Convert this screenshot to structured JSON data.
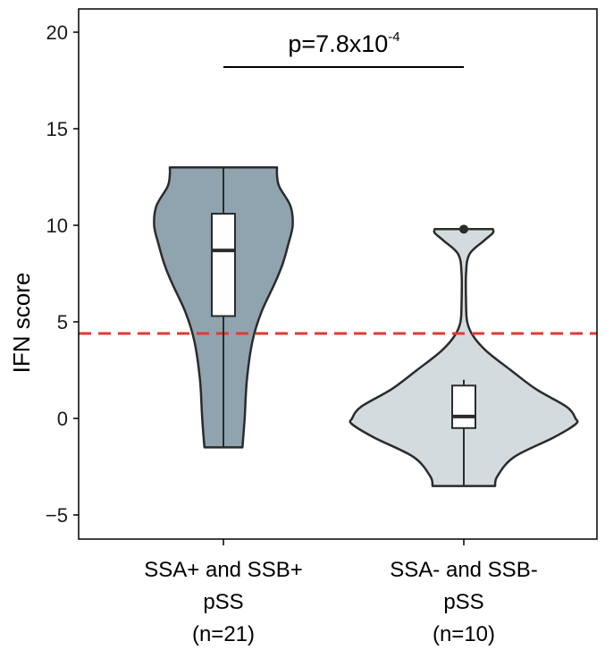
{
  "chart_data": {
    "type": "violin",
    "ylabel": "IFN score",
    "ylim": [
      -6.2,
      21.2
    ],
    "yticks": [
      "-5",
      "0",
      "5",
      "10",
      "15",
      "20"
    ],
    "ytick_values": [
      -5,
      0,
      5,
      10,
      15,
      20
    ],
    "threshold": {
      "value": 4.4,
      "color": "#e03a33",
      "style": "dashed"
    },
    "groups": [
      {
        "label_lines": [
          "SSA+ and SSB+",
          "pSS",
          "(n=21)"
        ],
        "fill": "#8fa4ae",
        "range": [
          -1.5,
          13.0
        ],
        "box": {
          "q1": 5.3,
          "median": 8.7,
          "q3": 10.6,
          "whisker_low": -1.5,
          "whisker_high": 13.0
        },
        "outliers": [],
        "density": [
          [
            -1.5,
            0.17
          ],
          [
            0.0,
            0.19
          ],
          [
            2.0,
            0.21
          ],
          [
            4.0,
            0.26
          ],
          [
            5.5,
            0.34
          ],
          [
            7.0,
            0.46
          ],
          [
            8.0,
            0.53
          ],
          [
            9.0,
            0.58
          ],
          [
            10.0,
            0.62
          ],
          [
            11.0,
            0.6
          ],
          [
            12.0,
            0.5
          ],
          [
            12.6,
            0.48
          ],
          [
            13.0,
            0.48
          ]
        ]
      },
      {
        "label_lines": [
          "SSA- and SSB-",
          "pSS",
          "(n=10)"
        ],
        "fill": "#d3dbdf",
        "range": [
          -3.5,
          9.8
        ],
        "box": {
          "q1": -0.5,
          "median": 0.1,
          "q3": 1.7,
          "whisker_low": -3.5,
          "whisker_high": 2.0
        },
        "outliers": [
          9.8
        ],
        "density": [
          [
            -3.5,
            0.28
          ],
          [
            -3.0,
            0.3
          ],
          [
            -2.0,
            0.45
          ],
          [
            -1.0,
            0.8
          ],
          [
            -0.3,
            1.0
          ],
          [
            0.0,
            1.0
          ],
          [
            0.6,
            0.92
          ],
          [
            1.5,
            0.65
          ],
          [
            2.5,
            0.42
          ],
          [
            3.5,
            0.2
          ],
          [
            4.3,
            0.08
          ],
          [
            5.0,
            0.03
          ],
          [
            6.0,
            0.02
          ],
          [
            7.5,
            0.02
          ],
          [
            8.5,
            0.05
          ],
          [
            9.2,
            0.18
          ],
          [
            9.6,
            0.26
          ],
          [
            9.8,
            0.26
          ]
        ]
      }
    ],
    "annotation": {
      "text": "p=7.8x10",
      "superscript": "-4"
    }
  }
}
